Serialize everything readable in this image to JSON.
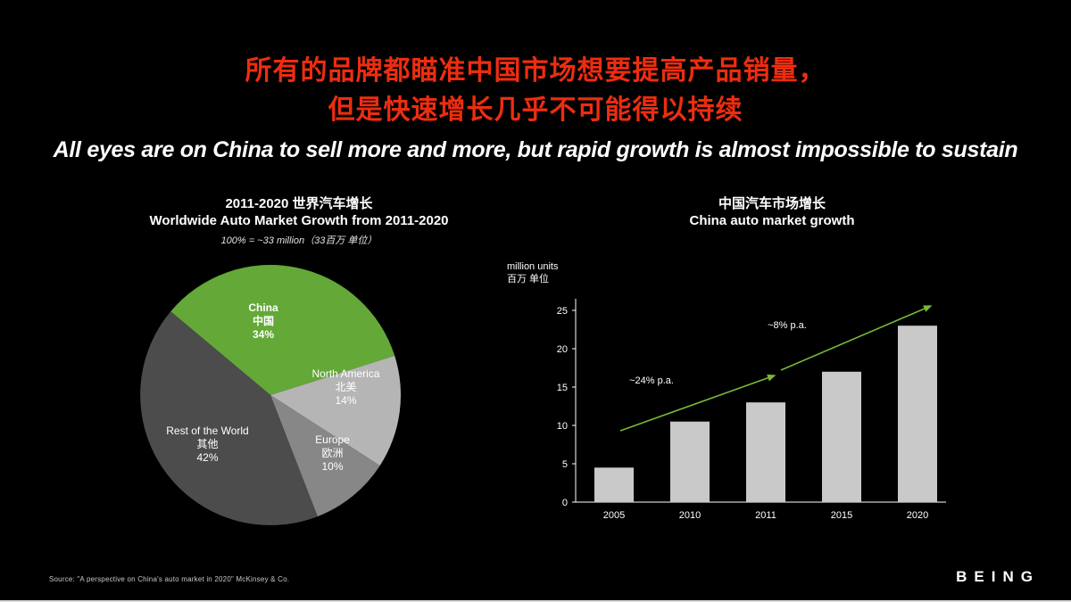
{
  "title": {
    "line1_zh": "所有的品牌都瞄准中国市场想要提高产品销量，",
    "line2_zh": "但是快速增长几乎不可能得以持续",
    "subtitle_en": "All eyes are on China to sell more and more, but rapid growth is almost impossible to sustain",
    "accent_color": "#ed2d10"
  },
  "footer": {
    "source": "Source: \"A perspective on China's auto market in 2020\" McKinsey & Co.",
    "logo": "BEING"
  },
  "chart_data": [
    {
      "type": "pie",
      "title_zh": "2011-2020 世界汽车增长",
      "title_en": "Worldwide Auto Market Growth from 2011-2020",
      "subtitle": "100% = ~33 million（33百万 单位）",
      "start_angle_deg": -50,
      "slices": [
        {
          "label_en": "China",
          "label_zh": "中国",
          "pct": 34,
          "pct_label": "34%",
          "color": "#64a838"
        },
        {
          "label_en": "North America",
          "label_zh": "北美",
          "pct": 14,
          "pct_label": "14%",
          "color": "#b5b5b5"
        },
        {
          "label_en": "Europe",
          "label_zh": "欧洲",
          "pct": 10,
          "pct_label": "10%",
          "color": "#878787"
        },
        {
          "label_en": "Rest of the World",
          "label_zh": "其他",
          "pct": 42,
          "pct_label": "42%",
          "color": "#4c4c4c"
        }
      ]
    },
    {
      "type": "bar",
      "title_zh": "中国汽车市场增长",
      "title_en": "China auto market growth",
      "y_axis_label_line1": "million units",
      "y_axis_label_line2": "百万 单位",
      "categories": [
        "2005",
        "2010",
        "2011",
        "2015",
        "2020"
      ],
      "values": [
        4.5,
        10.5,
        13,
        17,
        23
      ],
      "ylim": [
        0,
        25
      ],
      "yticks": [
        0,
        5,
        10,
        15,
        20,
        25
      ],
      "grid": false,
      "bar_color": "#c9c9c9",
      "arrow_color": "#79b833",
      "annotations": [
        {
          "label": "~24% p.a."
        },
        {
          "label": "~8% p.a."
        }
      ]
    }
  ]
}
